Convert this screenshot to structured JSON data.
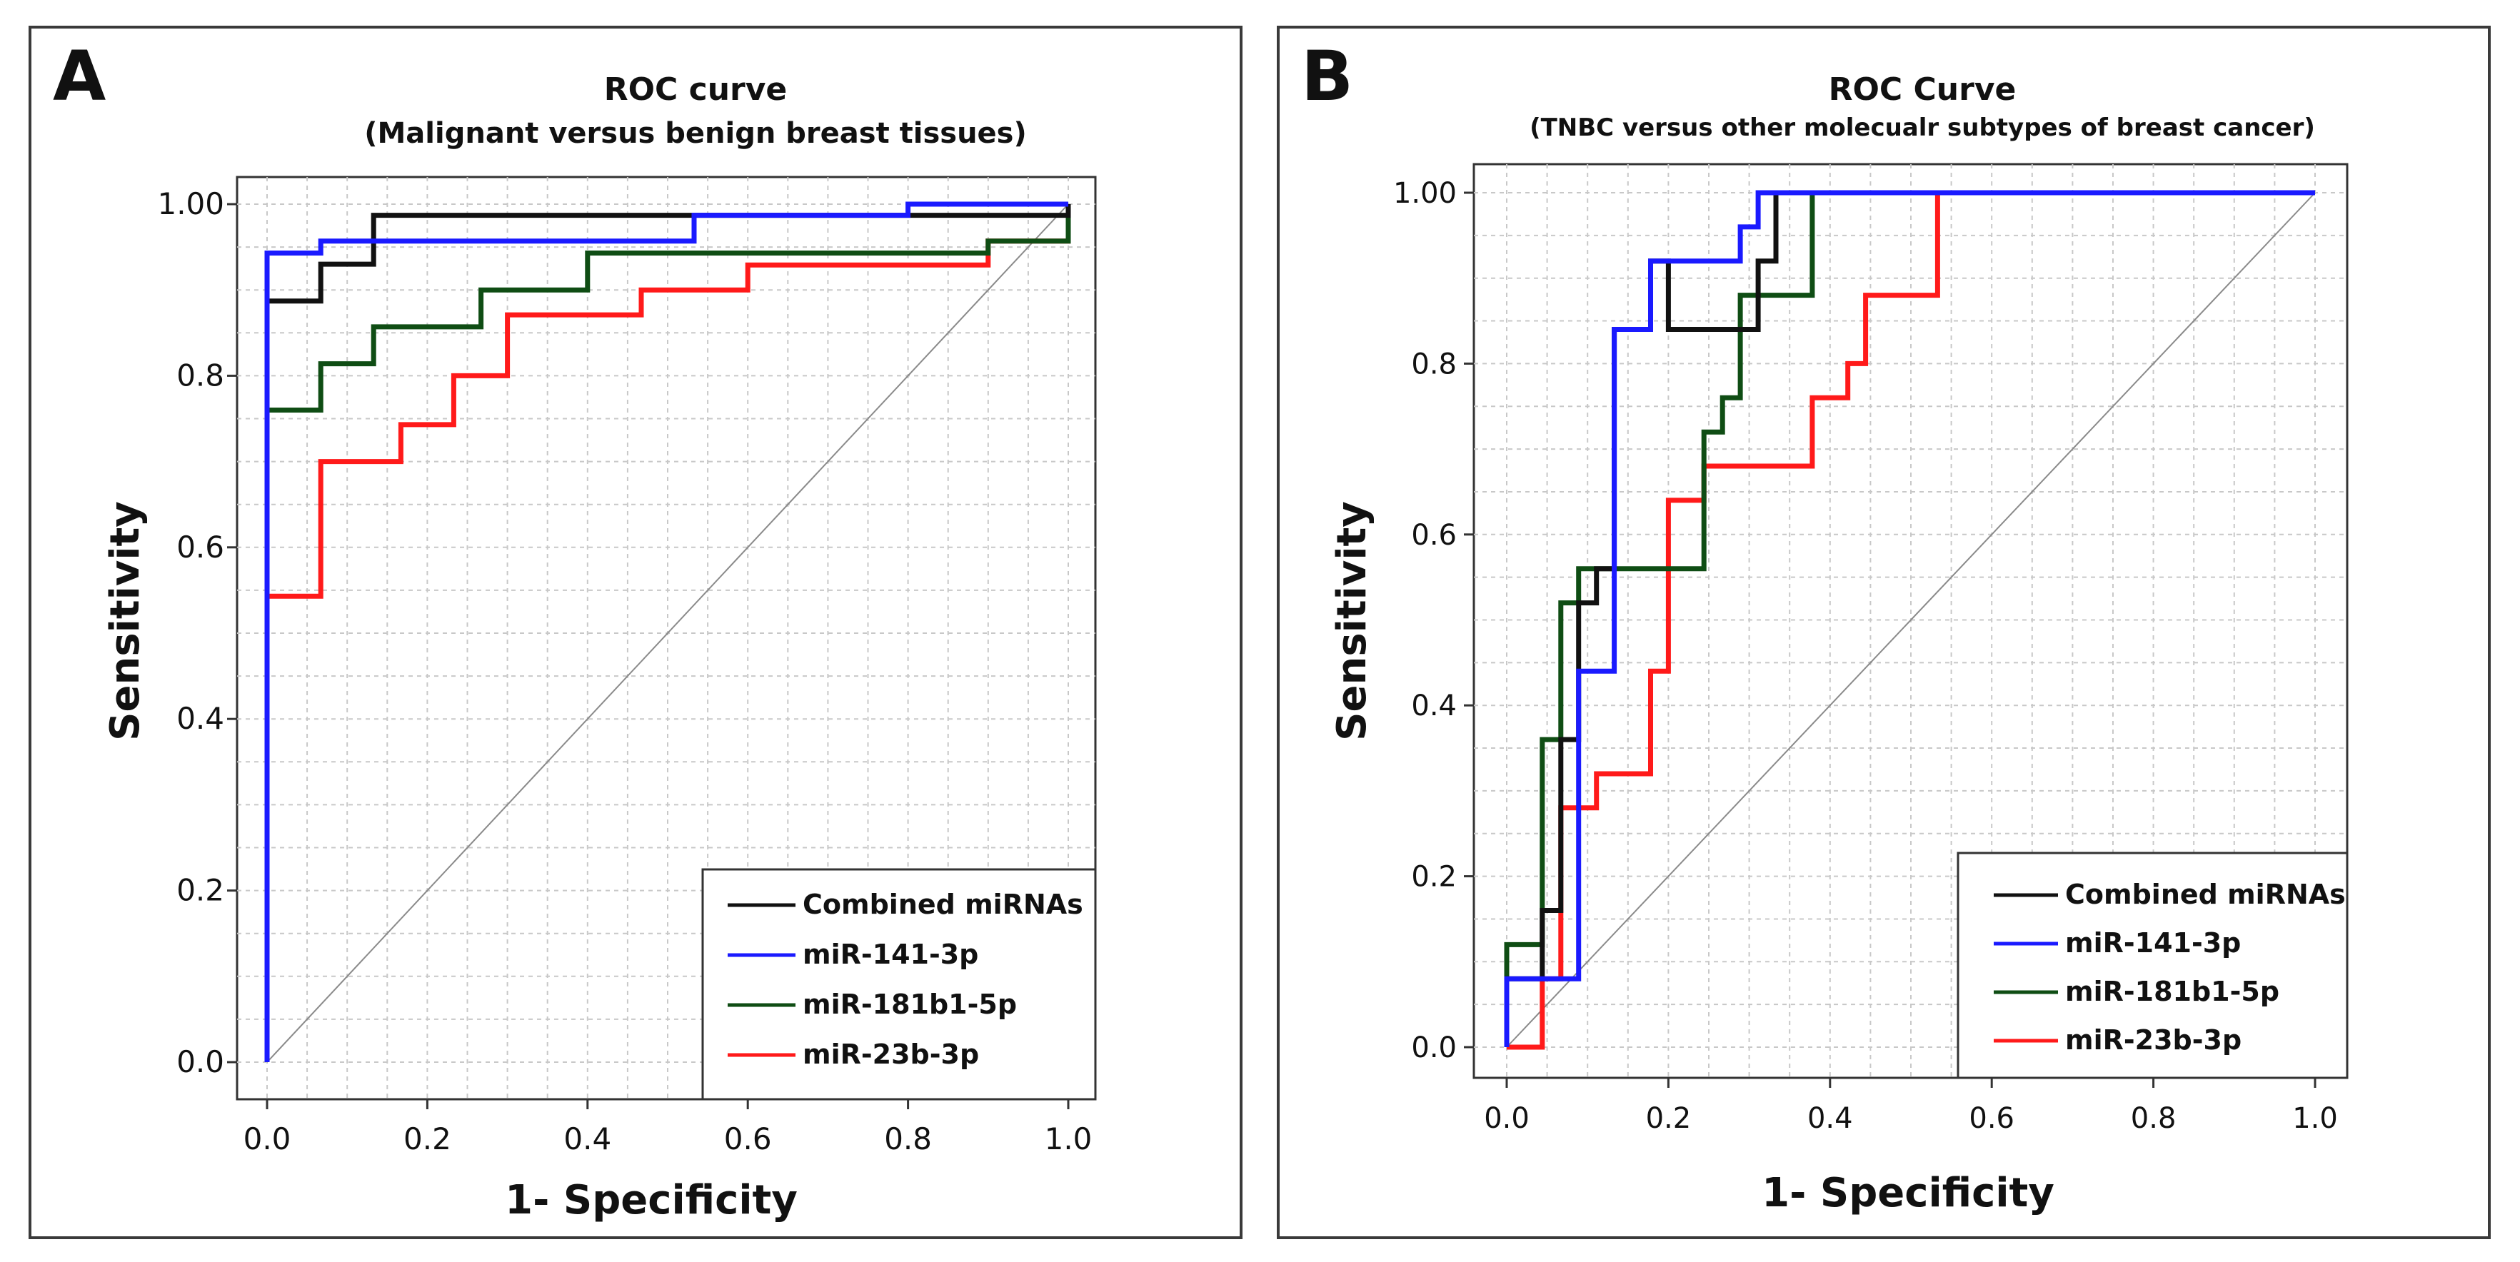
{
  "chart_data": [
    {
      "type": "line",
      "panel_label": "A",
      "title": "ROC  curve",
      "subtitle": "(Malignant versus benign breast tissues)",
      "xlabel": "1- Specificity",
      "ylabel": "Sensitivity",
      "xlim": [
        0,
        1
      ],
      "ylim": [
        0,
        1
      ],
      "xticks": [
        "0.0",
        "0.2",
        "0.4",
        "0.6",
        "0.8",
        "1.0"
      ],
      "yticks": [
        "0.0",
        "0.2",
        "0.4",
        "0.6",
        "0.8",
        "1.00"
      ],
      "grid": true,
      "diagonal": true,
      "legend_position": "bottom-right",
      "series": [
        {
          "name": "Combined miRNAs",
          "color": "#111111",
          "x": [
            0,
            0,
            0.067,
            0.067,
            0.133,
            0.133,
            1.0,
            1.0
          ],
          "y": [
            0,
            0.887,
            0.887,
            0.93,
            0.93,
            0.987,
            0.987,
            1.0
          ]
        },
        {
          "name": "miR-141-3p",
          "color": "#1a1aff",
          "x": [
            0,
            0,
            0.067,
            0.067,
            0.533,
            0.533,
            0.8,
            0.8,
            1.0,
            1.0
          ],
          "y": [
            0,
            0.943,
            0.943,
            0.957,
            0.957,
            0.987,
            0.987,
            1.0,
            1.0,
            1.0
          ]
        },
        {
          "name": "miR-181b1-5p",
          "color": "#0f4d14",
          "x": [
            0,
            0,
            0.067,
            0.067,
            0.133,
            0.133,
            0.267,
            0.267,
            0.4,
            0.4,
            0.9,
            0.9,
            1.0,
            1.0
          ],
          "y": [
            0,
            0.76,
            0.76,
            0.814,
            0.814,
            0.857,
            0.857,
            0.9,
            0.9,
            0.943,
            0.943,
            0.957,
            0.957,
            1.0
          ]
        },
        {
          "name": "miR-23b-3p",
          "color": "#ff1a1a",
          "x": [
            0,
            0,
            0.067,
            0.067,
            0.167,
            0.167,
            0.233,
            0.233,
            0.3,
            0.3,
            0.467,
            0.467,
            0.6,
            0.6,
            0.9,
            0.9,
            1.0,
            1.0
          ],
          "y": [
            0,
            0.543,
            0.543,
            0.7,
            0.7,
            0.743,
            0.743,
            0.8,
            0.8,
            0.871,
            0.871,
            0.9,
            0.9,
            0.929,
            0.929,
            0.957,
            0.957,
            1.0
          ]
        }
      ]
    },
    {
      "type": "line",
      "panel_label": "B",
      "title": "ROC Curve",
      "subtitle": "(TNBC versus other molecualr subtypes of breast cancer)",
      "xlabel": "1- Specificity",
      "ylabel": "Sensitivity",
      "xlim": [
        0,
        1
      ],
      "ylim": [
        0,
        1
      ],
      "xticks": [
        "0.0",
        "0.2",
        "0.4",
        "0.6",
        "0.8",
        "1.0"
      ],
      "yticks": [
        "0.0",
        "0.2",
        "0.4",
        "0.6",
        "0.8",
        "1.00"
      ],
      "grid": true,
      "diagonal": true,
      "legend_position": "bottom-right",
      "series": [
        {
          "name": "Combined miRNAs",
          "color": "#111111",
          "x": [
            0,
            0,
            0.044,
            0.044,
            0.067,
            0.067,
            0.089,
            0.089,
            0.111,
            0.111,
            0.133,
            0.133,
            0.178,
            0.178,
            0.2,
            0.2,
            0.311,
            0.311,
            0.333,
            0.333,
            1.0
          ],
          "y": [
            0,
            0.08,
            0.08,
            0.16,
            0.16,
            0.36,
            0.36,
            0.52,
            0.52,
            0.56,
            0.56,
            0.84,
            0.84,
            0.92,
            0.92,
            0.84,
            0.84,
            0.92,
            0.92,
            1.0,
            1.0
          ]
        },
        {
          "name": "miR-141-3p",
          "color": "#1a1aff",
          "x": [
            0,
            0,
            0.089,
            0.089,
            0.111,
            0.111,
            0.133,
            0.133,
            0.178,
            0.178,
            0.289,
            0.289,
            0.311,
            0.311,
            0.378,
            0.378,
            1.0
          ],
          "y": [
            0,
            0.08,
            0.08,
            0.44,
            0.44,
            0.44,
            0.44,
            0.84,
            0.84,
            0.92,
            0.92,
            0.96,
            0.96,
            1.0,
            1.0,
            1.0,
            1.0
          ]
        },
        {
          "name": "miR-181b1-5p",
          "color": "#0f4d14",
          "x": [
            0,
            0,
            0.044,
            0.044,
            0.067,
            0.067,
            0.089,
            0.089,
            0.244,
            0.244,
            0.267,
            0.267,
            0.289,
            0.289,
            0.378,
            0.378,
            0.533,
            0.533,
            1.0
          ],
          "y": [
            0,
            0.12,
            0.12,
            0.36,
            0.36,
            0.52,
            0.52,
            0.56,
            0.56,
            0.72,
            0.72,
            0.76,
            0.76,
            0.88,
            0.88,
            1.0,
            1.0,
            1.0,
            1.0
          ]
        },
        {
          "name": "miR-23b-3p",
          "color": "#ff1a1a",
          "x": [
            0,
            0.044,
            0.044,
            0.067,
            0.067,
            0.111,
            0.111,
            0.178,
            0.178,
            0.2,
            0.2,
            0.244,
            0.244,
            0.378,
            0.378,
            0.422,
            0.422,
            0.444,
            0.444,
            0.533,
            0.533,
            1.0
          ],
          "y": [
            0,
            0,
            0.08,
            0.08,
            0.28,
            0.28,
            0.32,
            0.32,
            0.44,
            0.44,
            0.64,
            0.64,
            0.68,
            0.68,
            0.76,
            0.76,
            0.8,
            0.8,
            0.88,
            0.88,
            1.0,
            1.0
          ]
        }
      ]
    }
  ]
}
